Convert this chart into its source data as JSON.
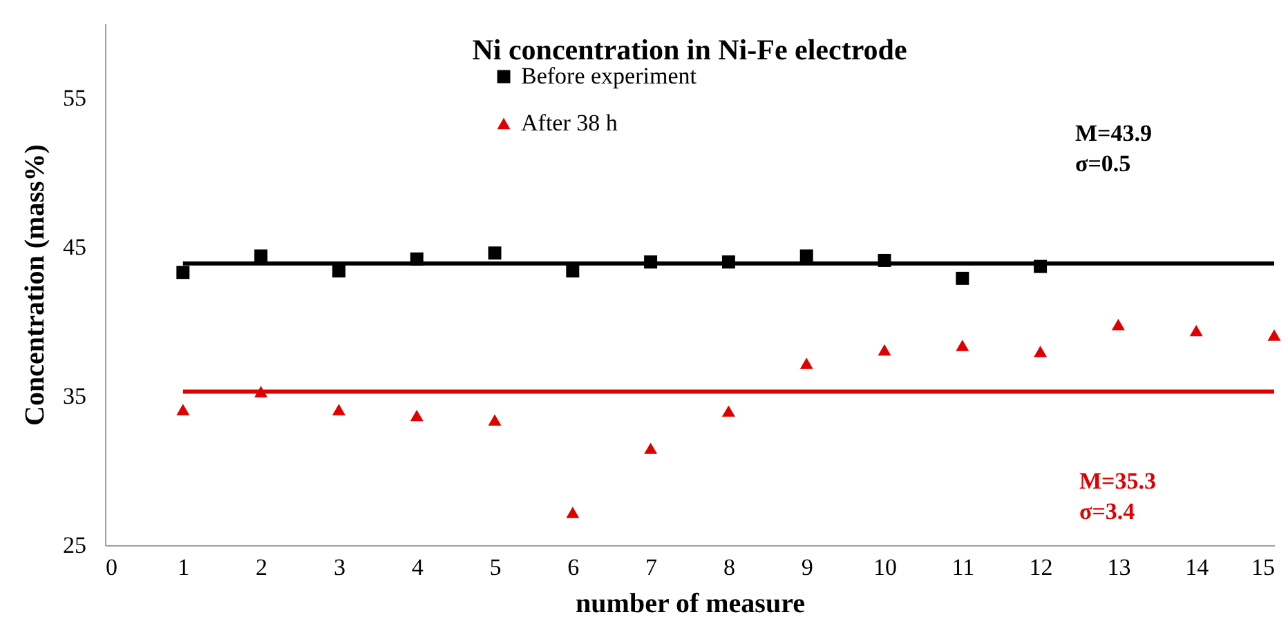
{
  "chart_data": {
    "type": "scatter",
    "title": "Ni concentration in Ni-Fe electrode",
    "xlabel": "number of measure",
    "ylabel": "Concentration (mass%)",
    "xlim": [
      0,
      15
    ],
    "xticks": [
      0,
      1,
      2,
      3,
      4,
      5,
      6,
      7,
      8,
      9,
      10,
      11,
      12,
      13,
      14,
      15
    ],
    "ylim": [
      25,
      60
    ],
    "yticks": [
      25,
      35,
      45,
      55
    ],
    "grid": false,
    "legend": "top",
    "series": [
      {
        "name": "Before experiment",
        "marker": "square",
        "color": "#000000",
        "x": [
          1,
          2,
          3,
          4,
          5,
          6,
          7,
          8,
          9,
          10,
          11,
          12
        ],
        "values": [
          43.3,
          44.4,
          43.4,
          44.2,
          44.6,
          43.4,
          44.0,
          44.0,
          44.4,
          44.1,
          42.9,
          43.7
        ]
      },
      {
        "name": "After 38 h",
        "marker": "triangle",
        "color": "#e00000",
        "x": [
          1,
          2,
          3,
          4,
          5,
          6,
          7,
          8,
          9,
          10,
          11,
          12,
          13,
          14,
          15
        ],
        "values": [
          34.1,
          35.3,
          34.1,
          33.7,
          33.4,
          27.2,
          31.5,
          34.0,
          37.2,
          38.1,
          38.4,
          38.0,
          39.8,
          39.4,
          39.1
        ]
      },
      {
        "type": "line",
        "color": "#000000",
        "x": [
          1,
          15
        ],
        "values": [
          43.9,
          43.9
        ]
      },
      {
        "type": "line",
        "color": "#e00000",
        "x": [
          1,
          15
        ],
        "values": [
          35.3,
          35.3
        ]
      }
    ],
    "annotations": [
      "M=43.9",
      "σ=0.5",
      "M=35.3",
      "σ=3.4"
    ]
  }
}
